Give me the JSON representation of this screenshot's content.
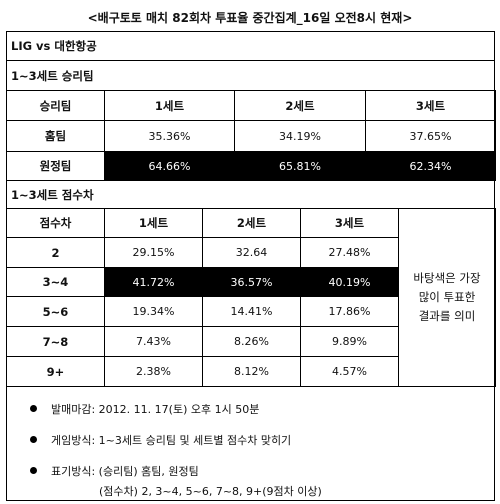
{
  "title": "<배구토토 매치 82회차 투표율 중간집계_16일 오전8시 현재>",
  "match": "LIG vs 대한항공",
  "section1": {
    "heading": "1~3세트 승리팀",
    "headers": [
      "승리팀",
      "1세트",
      "2세트",
      "3세트"
    ],
    "rows": [
      {
        "label": "홈팀",
        "values": [
          "35.36%",
          "34.19%",
          "37.65%"
        ]
      },
      {
        "label": "원정팀",
        "values": [
          "64.66%",
          "65.81%",
          "62.34%"
        ]
      }
    ]
  },
  "section2": {
    "heading": "1~3세트 점수차",
    "headers": [
      "점수차",
      "1세트",
      "2세트",
      "3세트"
    ],
    "rows": [
      {
        "label": "2",
        "values": [
          "29.15%",
          "32.64",
          "27.48%"
        ]
      },
      {
        "label": "3~4",
        "values": [
          "41.72%",
          "36.57%",
          "40.19%"
        ]
      },
      {
        "label": "5~6",
        "values": [
          "19.34%",
          "14.41%",
          "17.86%"
        ]
      },
      {
        "label": "7~8",
        "values": [
          "7.43%",
          "8.26%",
          "9.89%"
        ]
      },
      {
        "label": "9+",
        "values": [
          "2.38%",
          "8.12%",
          "4.57%"
        ]
      }
    ],
    "note_lines": [
      "바탕색은 가장",
      "많이 투표한",
      "결과를 의미"
    ]
  },
  "bullets": [
    "발매마감: 2012. 11. 17(토) 오후 1시 50분",
    "게임방식: 1~3세트 승리팀 및 세트별 점수차 맞히기",
    "표기방식: (승리팀) 홈팀, 원정팀"
  ],
  "footnote": "(점수차) 2, 3~4, 5~6, 7~8, 9+(9점차 이상)"
}
